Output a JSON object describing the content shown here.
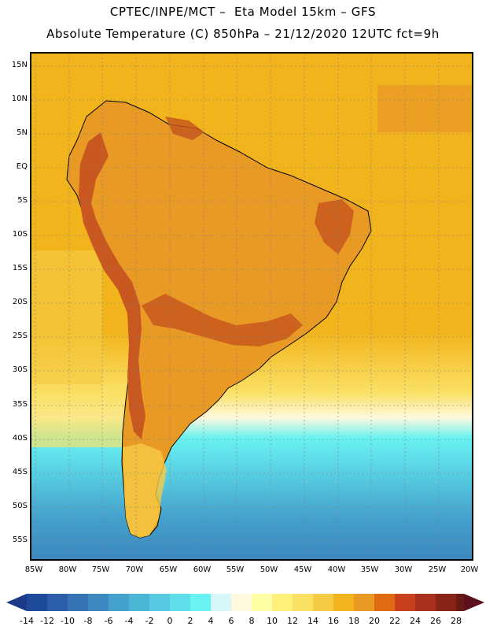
{
  "header": {
    "title_line1": "CPTEC/INPE/MCT –  Eta Model 15km – GFS",
    "title_line2": "Absolute Temperature (C) 850hPa – 21/12/2020 12UTC fct=9h"
  },
  "map": {
    "lat_labels": [
      "15N",
      "10N",
      "5N",
      "EQ",
      "5S",
      "10S",
      "15S",
      "20S",
      "25S",
      "30S",
      "35S",
      "40S",
      "45S",
      "50S",
      "55S"
    ],
    "lon_labels": [
      "85W",
      "80W",
      "75W",
      "70W",
      "65W",
      "60W",
      "55W",
      "50W",
      "45W",
      "40W",
      "35W",
      "30W",
      "25W",
      "20W"
    ],
    "ocean_color": "#f2b41c",
    "land_color": "#e99a25",
    "highland_color": "#c8581f"
  },
  "colorbar": {
    "labels": [
      "-14",
      "-12",
      "-10",
      "-8",
      "-6",
      "-4",
      "-2",
      "0",
      "2",
      "4",
      "6",
      "8",
      "10",
      "12",
      "14",
      "16",
      "18",
      "20",
      "22",
      "24",
      "26",
      "28"
    ],
    "colors": [
      "#1f4a9b",
      "#2c5ea9",
      "#3473b4",
      "#3c88c0",
      "#44a0cc",
      "#4cb6d6",
      "#56cae0",
      "#5fdeea",
      "#69f2f2",
      "#d7f8fb",
      "#fff8dd",
      "#ffffa4",
      "#fff07a",
      "#fae064",
      "#f5cb45",
      "#f2b41c",
      "#e99a25",
      "#e06a12",
      "#c8401c",
      "#a9301c",
      "#8a2418",
      "#6a1a14"
    ],
    "under_color": "#1c3a85",
    "over_color": "#5c0f1c"
  }
}
